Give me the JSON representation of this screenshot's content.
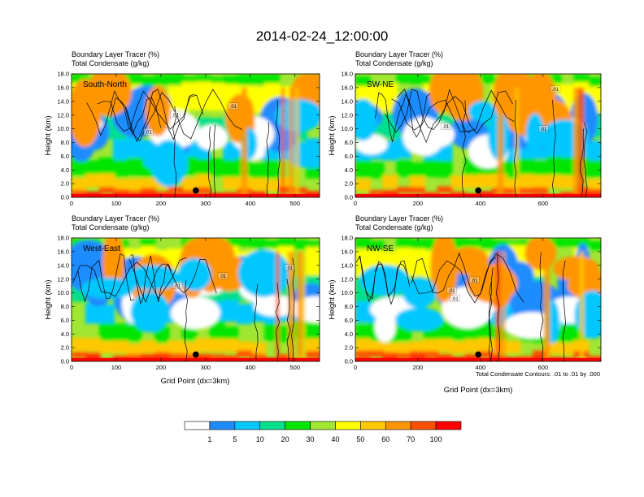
{
  "figure": {
    "title": "2014-02-24_12:00:00",
    "header_line1": "Boundary Layer Tracer   (%)",
    "header_line2": "Total Condensate   (g/kg)",
    "ylabel": "Height (km)",
    "xlabel": "Grid Point (dx=3km)",
    "contour_note": "Total Condensate Contours: .01 to .01 by .000",
    "contour_label": ".01"
  },
  "chart_data": [
    {
      "type": "heatmap",
      "name": "South-North",
      "xlim": [
        0,
        555
      ],
      "xticks": [
        0,
        100,
        200,
        300,
        400,
        500
      ],
      "ylim": [
        0,
        18
      ],
      "yticks": [
        "0.0",
        "2.0",
        "4.0",
        "6.0",
        "8.0",
        "10.0",
        "12.0",
        "14.0",
        "16.0",
        "18.0"
      ],
      "marker": {
        "x": 278,
        "y": 1.0
      },
      "dominant_level": 40
    },
    {
      "type": "heatmap",
      "name": "SW-NE",
      "xlim": [
        0,
        785
      ],
      "xticks": [
        0,
        200,
        400,
        600
      ],
      "ylim": [
        0,
        18
      ],
      "yticks": [
        "0.0",
        "2.0",
        "4.0",
        "6.0",
        "8.0",
        "10.0",
        "12.0",
        "14.0",
        "16.0",
        "18.0"
      ],
      "marker": {
        "x": 393,
        "y": 1.0
      },
      "dominant_level": 40
    },
    {
      "type": "heatmap",
      "name": "West-East",
      "xlim": [
        0,
        555
      ],
      "xticks": [
        0,
        100,
        200,
        300,
        400,
        500
      ],
      "ylim": [
        0,
        18
      ],
      "yticks": [
        "0.0",
        "2.0",
        "4.0",
        "6.0",
        "8.0",
        "10.0",
        "12.0",
        "14.0",
        "16.0",
        "18.0"
      ],
      "marker": {
        "x": 278,
        "y": 1.0
      },
      "dominant_level": 40
    },
    {
      "type": "heatmap",
      "name": "NW-SE",
      "xlim": [
        0,
        785
      ],
      "xticks": [
        0,
        200,
        400,
        600
      ],
      "ylim": [
        0,
        18
      ],
      "yticks": [
        "0.0",
        "2.0",
        "4.0",
        "6.0",
        "8.0",
        "10.0",
        "12.0",
        "14.0",
        "16.0",
        "18.0"
      ],
      "marker": {
        "x": 393,
        "y": 1.0
      },
      "dominant_level": 30
    }
  ],
  "colorbar": {
    "levels": [
      "1",
      "5",
      "10",
      "20",
      "30",
      "40",
      "50",
      "60",
      "70",
      "100"
    ],
    "colors": [
      "#ffffff",
      "#1e8cff",
      "#00c8ff",
      "#00e08c",
      "#00e600",
      "#a0e632",
      "#ffff00",
      "#ffc800",
      "#ff9600",
      "#ff5000",
      "#ff0000"
    ]
  }
}
